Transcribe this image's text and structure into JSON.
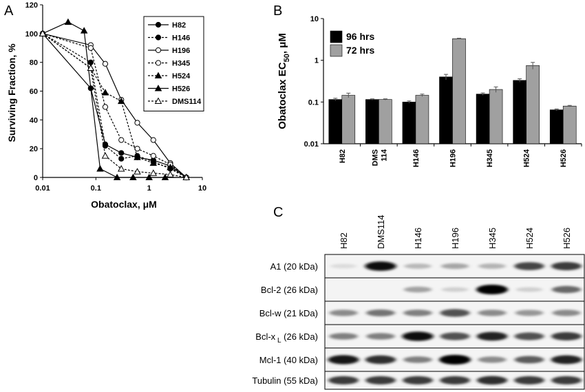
{
  "panel_labels": {
    "a": "A",
    "b": "B",
    "c": "C"
  },
  "chart_data": [
    {
      "type": "line",
      "panel": "A",
      "xlabel": "Obatoclax, μM",
      "ylabel": "Surviving Fraction, %",
      "xscale": "log",
      "xlim": [
        0.01,
        10
      ],
      "ylim": [
        0,
        120
      ],
      "xticks": [
        "0.01",
        "0.1",
        "1",
        "10"
      ],
      "yticks": [
        "0",
        "20",
        "40",
        "60",
        "80",
        "100",
        "120"
      ],
      "grid": false,
      "legend_position": "top-right",
      "series": [
        {
          "name": "H82",
          "marker": "filled-circle",
          "dash": "solid",
          "x": [
            0.01,
            0.08,
            0.15,
            0.3,
            0.6,
            1.2,
            2.5,
            5
          ],
          "y": [
            100,
            62,
            23,
            17,
            14,
            12,
            8,
            0
          ]
        },
        {
          "name": "H146",
          "marker": "filled-circle",
          "dash": "dashed",
          "x": [
            0.01,
            0.08,
            0.15,
            0.3,
            0.6,
            1.2,
            2.5,
            5
          ],
          "y": [
            100,
            80,
            22,
            13,
            15,
            11,
            6,
            0
          ]
        },
        {
          "name": "H196",
          "marker": "open-circle",
          "dash": "solid",
          "x": [
            0.01,
            0.08,
            0.15,
            0.3,
            0.6,
            1.2,
            2.5,
            5
          ],
          "y": [
            100,
            92,
            79,
            54,
            38,
            26,
            10,
            0
          ]
        },
        {
          "name": "H345",
          "marker": "open-circle",
          "dash": "dashed",
          "x": [
            0.01,
            0.08,
            0.15,
            0.3,
            0.6,
            1.2,
            2.5,
            5
          ],
          "y": [
            100,
            90,
            49,
            26,
            20,
            15,
            9,
            0
          ]
        },
        {
          "name": "H524",
          "marker": "filled-triangle",
          "dash": "dashed",
          "x": [
            0.01,
            0.08,
            0.15,
            0.3,
            0.6,
            1.2,
            2.5,
            5
          ],
          "y": [
            100,
            76,
            59,
            53,
            14,
            10,
            7,
            0
          ]
        },
        {
          "name": "H526",
          "marker": "filled-triangle",
          "dash": "solid",
          "x": [
            0.01,
            0.03,
            0.06,
            0.12,
            0.25,
            0.5,
            1,
            2,
            5
          ],
          "y": [
            100,
            108,
            102,
            6,
            0,
            0,
            0,
            0,
            0
          ]
        },
        {
          "name": "DMS114",
          "marker": "open-triangle",
          "dash": "dashed",
          "x": [
            0.01,
            0.08,
            0.15,
            0.3,
            0.6,
            1.2,
            2.5,
            5
          ],
          "y": [
            100,
            76,
            15,
            6,
            4,
            3,
            2,
            0
          ]
        }
      ]
    },
    {
      "type": "bar",
      "panel": "B",
      "ylabel": "Obatoclax EC",
      "ylabel_sub": "50",
      "ylabel_tail": ", μM",
      "yscale": "log",
      "ylim": [
        0.01,
        10
      ],
      "yticks": [
        "0.01",
        "0.1",
        "1",
        "10"
      ],
      "legend_position": "top-left",
      "categories": [
        "H82",
        "DMS 114",
        "H146",
        "H196",
        "H345",
        "H524",
        "H526"
      ],
      "series": [
        {
          "name": "96 hrs",
          "color": "#000000",
          "values": [
            0.115,
            0.115,
            0.1,
            0.4,
            0.155,
            0.33,
            0.065
          ],
          "errors": [
            0.008,
            0.004,
            0.006,
            0.06,
            0.01,
            0.03,
            0.003
          ]
        },
        {
          "name": "72 hrs",
          "color": "#a0a0a0",
          "values": [
            0.145,
            0.115,
            0.145,
            3.3,
            0.2,
            0.75,
            0.08
          ],
          "errors": [
            0.018,
            0.004,
            0.01,
            0.08,
            0.03,
            0.14,
            0.003
          ]
        }
      ]
    }
  ],
  "western_blot": {
    "panel": "C",
    "lanes": [
      "H82",
      "DMS114",
      "H146",
      "H196",
      "H345",
      "H524",
      "H526"
    ],
    "rows": [
      {
        "label": "A1 (20 kDa)",
        "intensity": [
          0.05,
          0.95,
          0.2,
          0.28,
          0.22,
          0.7,
          0.75
        ]
      },
      {
        "label": "Bcl-2 (26 kDa)",
        "intensity": [
          0.0,
          0.0,
          0.3,
          0.1,
          1.0,
          0.1,
          0.55
        ]
      },
      {
        "label": "Bcl-w (21 kDa)",
        "intensity": [
          0.4,
          0.5,
          0.45,
          0.65,
          0.4,
          0.35,
          0.4
        ]
      },
      {
        "label": "Bcl-x",
        "label_sub": "L",
        "label_tail": " (26 kDa)",
        "intensity": [
          0.45,
          0.45,
          0.95,
          0.65,
          0.85,
          0.65,
          0.75
        ]
      },
      {
        "label": "Mcl-1 (40 kDa)",
        "intensity": [
          0.9,
          0.8,
          0.45,
          1.0,
          0.4,
          0.6,
          0.85
        ]
      },
      {
        "label": "Tubulin (55 kDa)",
        "intensity": [
          0.75,
          0.75,
          0.75,
          0.75,
          0.8,
          0.75,
          0.75
        ]
      }
    ]
  }
}
